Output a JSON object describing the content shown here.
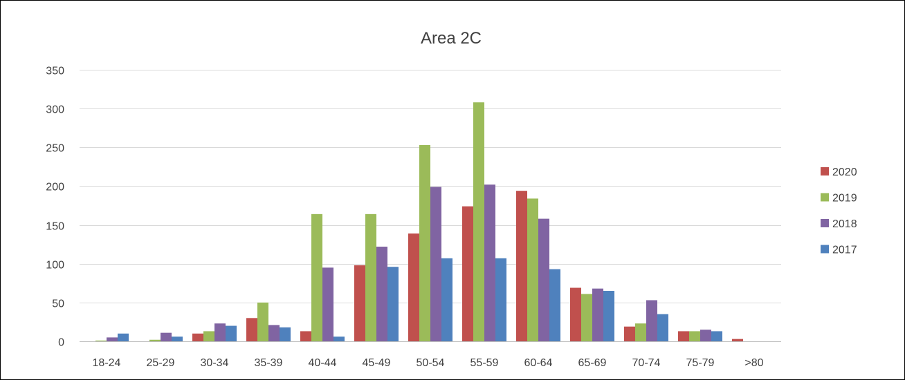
{
  "chart_data": {
    "type": "bar",
    "title": "Area 2C",
    "xlabel": "",
    "ylabel": "",
    "categories": [
      "18-24",
      "25-29",
      "30-34",
      "35-39",
      "40-44",
      "45-49",
      "50-54",
      "55-59",
      "60-64",
      "65-69",
      "70-74",
      "75-79",
      ">80"
    ],
    "ylim": [
      0,
      350
    ],
    "yticks": [
      0,
      50,
      100,
      150,
      200,
      250,
      300,
      350
    ],
    "grid": true,
    "legend_position": "right",
    "series": [
      {
        "name": "2020",
        "color": "#c0504d",
        "values": [
          0,
          0,
          10,
          30,
          13,
          98,
          139,
          174,
          194,
          69,
          19,
          13,
          3
        ]
      },
      {
        "name": "2019",
        "color": "#9bbb59",
        "values": [
          1,
          2,
          13,
          50,
          164,
          164,
          253,
          308,
          184,
          61,
          23,
          13,
          0
        ]
      },
      {
        "name": "2018",
        "color": "#8064a2",
        "values": [
          5,
          11,
          23,
          21,
          95,
          122,
          199,
          202,
          158,
          68,
          53,
          15,
          0
        ]
      },
      {
        "name": "2017",
        "color": "#4f81bd",
        "values": [
          10,
          6,
          20,
          18,
          6,
          96,
          107,
          107,
          93,
          65,
          35,
          13,
          0
        ]
      }
    ]
  }
}
